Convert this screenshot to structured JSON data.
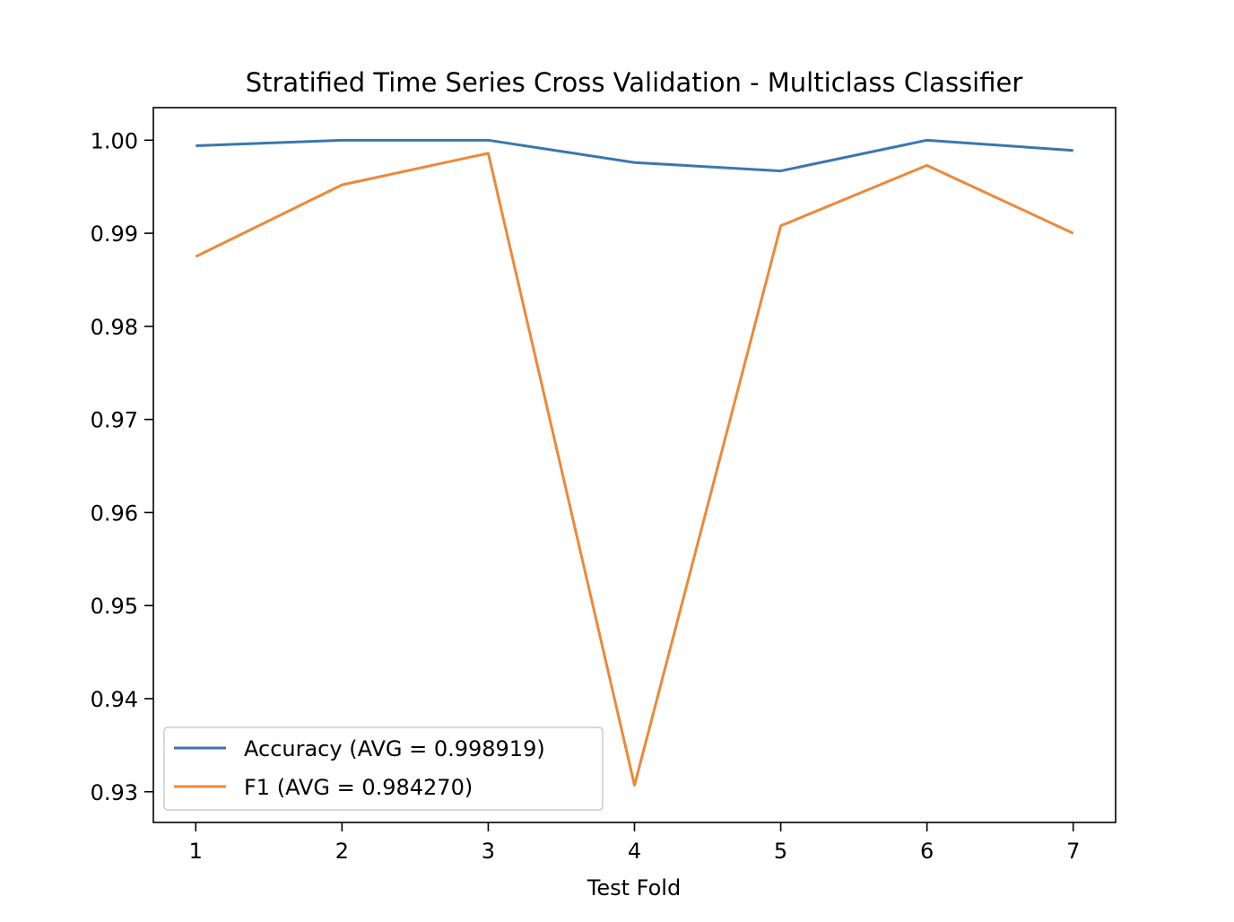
{
  "chart_data": {
    "type": "line",
    "title": "Stratified Time Series Cross Validation - Multiclass Classifier",
    "xlabel": "Test Fold",
    "ylabel": "",
    "x": [
      1,
      2,
      3,
      4,
      5,
      6,
      7
    ],
    "xticks": [
      "1",
      "2",
      "3",
      "4",
      "5",
      "6",
      "7"
    ],
    "xlim": [
      0.71,
      7.29
    ],
    "ylim": [
      0.9267,
      1.0035
    ],
    "yticks": [
      "0.93",
      "0.94",
      "0.95",
      "0.96",
      "0.97",
      "0.98",
      "0.99",
      "1.00"
    ],
    "grid": false,
    "legend_position": "lower-left",
    "series": [
      {
        "name": "Accuracy (AVG = 0.998919)",
        "color": "#3a77b0",
        "values": [
          0.9994,
          1.0,
          1.0,
          0.9976,
          0.9967,
          1.0,
          0.9989
        ]
      },
      {
        "name": "F1 (AVG = 0.984270)",
        "color": "#ee8838",
        "values": [
          0.9875,
          0.9952,
          0.9986,
          0.9307,
          0.9908,
          0.9973,
          0.99
        ]
      }
    ]
  }
}
